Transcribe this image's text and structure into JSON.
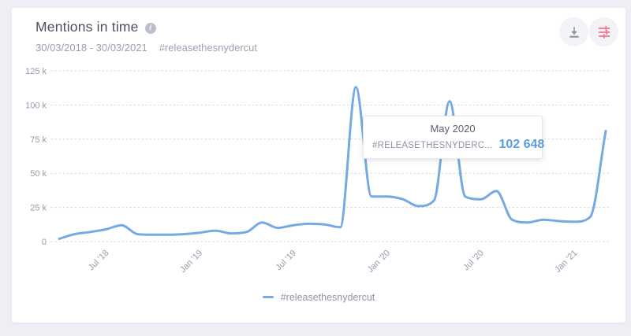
{
  "header": {
    "title": "Mentions in time",
    "date_range": "30/03/2018 - 30/03/2021",
    "query": "#releasethesnydercut"
  },
  "tooltip": {
    "title": "May 2020",
    "series_label": "#RELEASETHESNYDERC...",
    "value": "102 648"
  },
  "legend": {
    "label": "#releasethesnydercut"
  },
  "colors": {
    "line": "#74aae4",
    "grid": "#d3d6db",
    "axis_text": "#939cac",
    "accent_value": "#5c9ce1",
    "filter_icon": "#f8708f",
    "download_icon": "#8d939c",
    "page_bg": "#edeff4",
    "card_bg": "#ffffff"
  },
  "chart_data": {
    "type": "line",
    "title": "Mentions in time",
    "x": [
      "Apr '18",
      "May '18",
      "Jun '18",
      "Jul '18",
      "Aug '18",
      "Sep '18",
      "Oct '18",
      "Nov '18",
      "Dec '18",
      "Jan '19",
      "Feb '19",
      "Mar '19",
      "Apr '19",
      "May '19",
      "Jun '19",
      "Jul '19",
      "Aug '19",
      "Sep '19",
      "Oct '19",
      "Nov '19",
      "Dec '19",
      "Jan '20",
      "Feb '20",
      "Mar '20",
      "Apr '20",
      "May '20",
      "Jun '20",
      "Jul '20",
      "Aug '20",
      "Sep '20",
      "Oct '20",
      "Nov '20",
      "Dec '20",
      "Jan '21",
      "Feb '21",
      "Mar '21"
    ],
    "series": [
      {
        "name": "#releasethesnydercut",
        "values": [
          2000,
          5500,
          7000,
          9000,
          12000,
          5500,
          5000,
          5000,
          5500,
          6500,
          8000,
          6000,
          7000,
          14000,
          10000,
          12000,
          13000,
          12500,
          10500,
          113000,
          33000,
          33000,
          31000,
          26000,
          30000,
          102648,
          33000,
          31000,
          37000,
          16000,
          14000,
          16000,
          15000,
          14500,
          18000,
          81000
        ]
      }
    ],
    "x_ticks": [
      {
        "index": 3,
        "label": "Jul '18"
      },
      {
        "index": 9,
        "label": "Jan '19"
      },
      {
        "index": 15,
        "label": "Jul '19"
      },
      {
        "index": 21,
        "label": "Jan '20"
      },
      {
        "index": 27,
        "label": "Jul '20"
      },
      {
        "index": 33,
        "label": "Jan '21"
      }
    ],
    "y_ticks": [
      {
        "value": 0,
        "label": "0"
      },
      {
        "value": 25000,
        "label": "25 k"
      },
      {
        "value": 50000,
        "label": "50 k"
      },
      {
        "value": 75000,
        "label": "75 k"
      },
      {
        "value": 100000,
        "label": "100 k"
      },
      {
        "value": 125000,
        "label": "125 k"
      }
    ],
    "ylim": [
      0,
      125000
    ],
    "xlabel": "",
    "ylabel": "",
    "grid": "dotted-horizontal",
    "legend_position": "bottom",
    "highlighted_point": {
      "x": "May '20",
      "value": 102648
    }
  }
}
